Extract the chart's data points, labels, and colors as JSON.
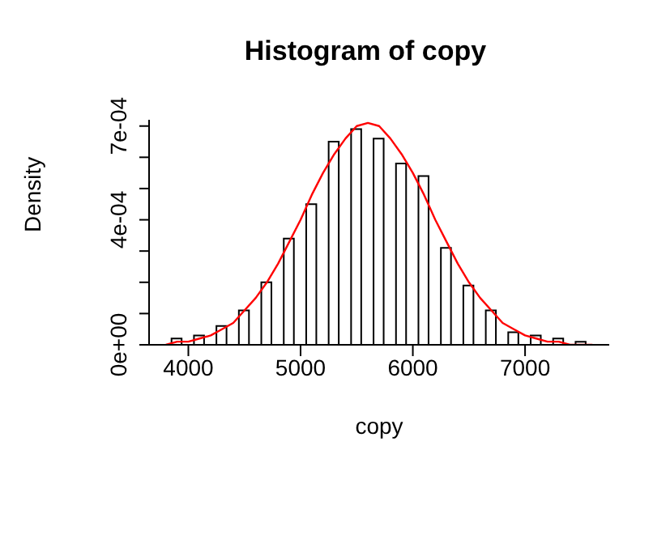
{
  "chart_data": {
    "type": "histogram",
    "title": "Histogram of copy",
    "xlabel": "copy",
    "ylabel": "Density",
    "bins": [
      3800,
      4000,
      4200,
      4400,
      4600,
      4800,
      5000,
      5200,
      5400,
      5600,
      5800,
      6000,
      6200,
      6400,
      6600,
      6800,
      7000,
      7200,
      7400,
      7600
    ],
    "values": [
      2e-05,
      3e-05,
      6e-05,
      0.00011,
      0.0002,
      0.00034,
      0.00045,
      0.00065,
      0.00069,
      0.00066,
      0.00058,
      0.00054,
      0.00031,
      0.00019,
      0.00011,
      4e-05,
      3e-05,
      2e-05,
      1e-05
    ],
    "color": "#ffffff",
    "series": [
      {
        "type": "line",
        "color": "#ff0000",
        "x": [
          3800,
          3900,
          4000,
          4100,
          4200,
          4300,
          4400,
          4500,
          4600,
          4700,
          4800,
          4900,
          5000,
          5100,
          5200,
          5300,
          5400,
          5500,
          5600,
          5700,
          5800,
          5900,
          6000,
          6100,
          6200,
          6300,
          6400,
          6500,
          6600,
          6700,
          6800,
          6900,
          7000,
          7100,
          7200,
          7300,
          7400,
          7500,
          7600
        ],
        "values": [
          0,
          1e-05,
          1e-05,
          2e-05,
          3e-05,
          5e-05,
          7e-05,
          0.00011,
          0.00015,
          0.0002,
          0.00026,
          0.00033,
          0.0004,
          0.00048,
          0.00055,
          0.00061,
          0.00066,
          0.0007,
          0.00071,
          0.0007,
          0.00066,
          0.00061,
          0.00055,
          0.00048,
          0.0004,
          0.00033,
          0.00026,
          0.0002,
          0.00015,
          0.00011,
          7e-05,
          5e-05,
          3e-05,
          2e-05,
          1e-05,
          1e-05,
          0,
          0,
          0
        ]
      }
    ],
    "xlim": [
      3650,
      7750
    ],
    "ylim": [
      0,
      0.00072
    ],
    "xticks": [
      4000,
      5000,
      6000,
      7000
    ],
    "yticks": [
      {
        "value": 0,
        "label": "0e+00"
      },
      {
        "value": 0.0001,
        "label": null
      },
      {
        "value": 0.0002,
        "label": null
      },
      {
        "value": 0.0003,
        "label": null
      },
      {
        "value": 0.0004,
        "label": "4e-04"
      },
      {
        "value": 0.0005,
        "label": null
      },
      {
        "value": 0.0006,
        "label": null
      },
      {
        "value": 0.0007,
        "label": "7e-04"
      }
    ]
  }
}
